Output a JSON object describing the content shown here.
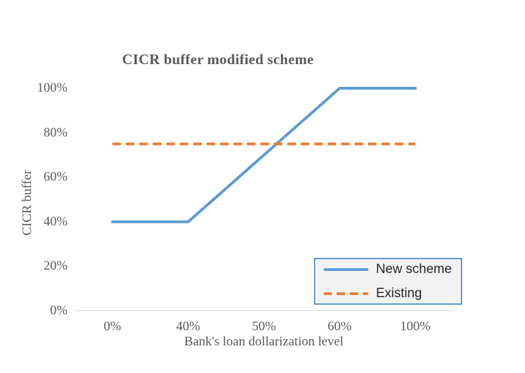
{
  "chart_data": {
    "type": "line",
    "title": "CICR buffer modified scheme",
    "xlabel": "Bank's loan dollarization level",
    "ylabel": "CICR buffer",
    "categories": [
      "0%",
      "40%",
      "50%",
      "60%",
      "100%"
    ],
    "series": [
      {
        "name": "New scheme",
        "values": [
          0.4,
          0.4,
          0.7,
          1.0,
          1.0
        ],
        "color": "#5B9BD5",
        "line_style": "solid"
      },
      {
        "name": "Existing",
        "values": [
          0.75,
          0.75,
          0.75,
          0.75,
          0.75
        ],
        "color": "#ED7D31",
        "line_style": "dashed"
      }
    ],
    "yticks": [
      {
        "label": "0%",
        "value": 0.0
      },
      {
        "label": "20%",
        "value": 0.2
      },
      {
        "label": "40%",
        "value": 0.4
      },
      {
        "label": "60%",
        "value": 0.6
      },
      {
        "label": "80%",
        "value": 0.8
      },
      {
        "label": "100%",
        "value": 1.0
      }
    ],
    "ylim": [
      0,
      1
    ],
    "grid": false,
    "legend_position": "bottom-right",
    "text_color": "#595959",
    "axis_line_color": "#D9D9D9",
    "legend_border_color": "#5B9BD5",
    "legend_background": "#F2F2F2"
  }
}
